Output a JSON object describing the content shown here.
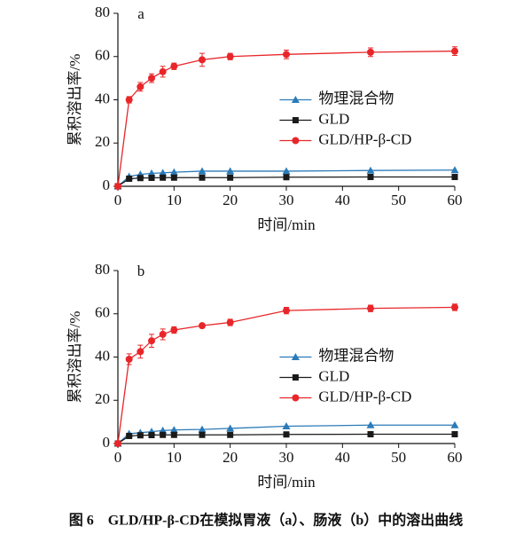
{
  "chart_data": [
    {
      "type": "line",
      "label": "a",
      "xlabel": "时间/min",
      "ylabel": "累积溶出率/%",
      "x": [
        0,
        2,
        4,
        6,
        8,
        10,
        15,
        20,
        30,
        45,
        60
      ],
      "xlim": [
        0,
        60
      ],
      "xticks": [
        0,
        10,
        20,
        30,
        40,
        50,
        60
      ],
      "ylim": [
        0,
        80
      ],
      "yticks": [
        0,
        20,
        40,
        60,
        80
      ],
      "legend": "right",
      "series": [
        {
          "name": "物理混合物",
          "color": "#2b7bb9",
          "marker": "triangle",
          "values": [
            0,
            4.5,
            5.5,
            6,
            6.2,
            6.5,
            7,
            7,
            7,
            7.3,
            7.5
          ]
        },
        {
          "name": "GLD",
          "color": "#1a1a1a",
          "marker": "square",
          "values": [
            0,
            3.5,
            3.8,
            3.9,
            4,
            4,
            4,
            4,
            4.2,
            4.3,
            4.3
          ]
        },
        {
          "name": "GLD/HP-β-CD",
          "color": "#e8262a",
          "marker": "circle",
          "values": [
            0,
            40,
            46,
            50,
            53,
            55.5,
            58.5,
            60,
            61,
            62,
            62.5
          ],
          "errors": [
            0,
            1.5,
            2,
            2,
            2.5,
            1.5,
            3,
            1.5,
            2,
            2,
            2
          ]
        }
      ]
    },
    {
      "type": "line",
      "label": "b",
      "xlabel": "时间/min",
      "ylabel": "累积溶出率/%",
      "x": [
        0,
        2,
        4,
        6,
        8,
        10,
        15,
        20,
        30,
        45,
        60
      ],
      "xlim": [
        0,
        60
      ],
      "xticks": [
        0,
        10,
        20,
        30,
        40,
        50,
        60
      ],
      "ylim": [
        0,
        80
      ],
      "yticks": [
        0,
        20,
        40,
        60,
        80
      ],
      "legend": "right",
      "series": [
        {
          "name": "物理混合物",
          "color": "#2b7bb9",
          "marker": "triangle",
          "values": [
            0,
            4.5,
            5,
            5.5,
            6,
            6.3,
            6.5,
            7,
            8,
            8.5,
            8.5
          ]
        },
        {
          "name": "GLD",
          "color": "#1a1a1a",
          "marker": "square",
          "values": [
            0,
            3.5,
            3.8,
            3.9,
            4,
            4,
            4,
            4,
            4.2,
            4.3,
            4.3
          ]
        },
        {
          "name": "GLD/HP-β-CD",
          "color": "#e8262a",
          "marker": "circle",
          "values": [
            0,
            39,
            42.5,
            47.5,
            50.5,
            52.5,
            54.5,
            56,
            61.5,
            62.5,
            63
          ],
          "errors": [
            0,
            2.5,
            3,
            3,
            2.5,
            1.5,
            1,
            1.5,
            1.5,
            1.5,
            1.5
          ]
        }
      ]
    }
  ],
  "caption": "图 6　GLD/HP-β-CD在模拟胃液（a）、肠液（b）中的溶出曲线"
}
